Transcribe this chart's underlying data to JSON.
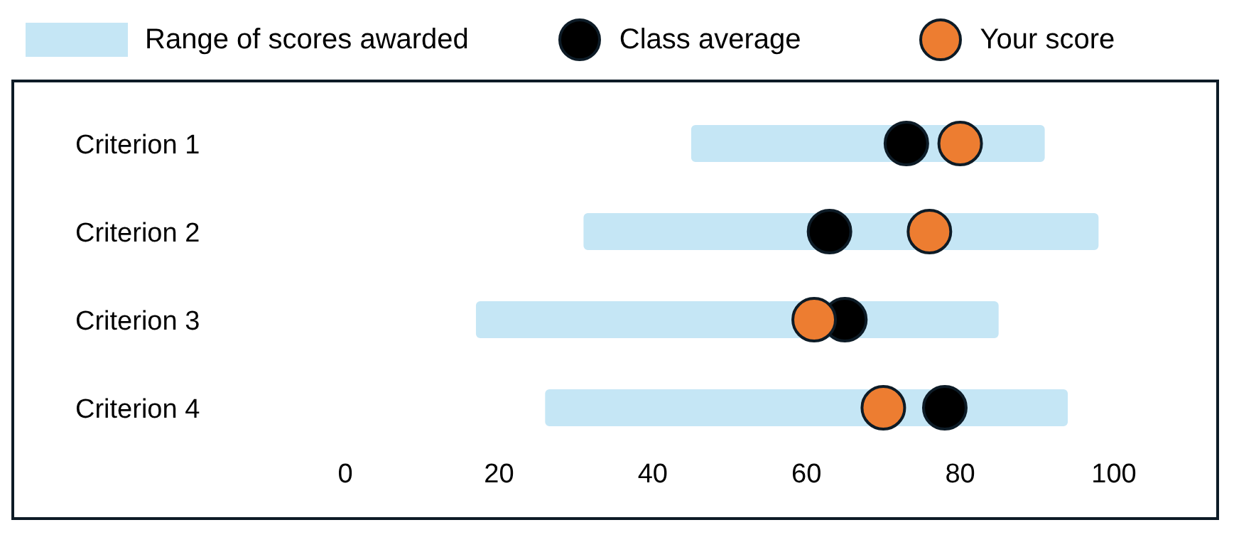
{
  "chart_data": {
    "type": "bar",
    "orientation": "horizontal",
    "categories": [
      "Criterion 1",
      "Criterion 2",
      "Criterion 3",
      "Criterion 4"
    ],
    "series": [
      {
        "name": "Range of scores awarded",
        "color": "#c5e6f5",
        "base": [
          45,
          31,
          17,
          26
        ],
        "values": [
          46,
          67,
          68,
          68
        ]
      },
      {
        "name": "Class average",
        "type": "scatter",
        "color": "#000000",
        "values": [
          73,
          63,
          65,
          78
        ]
      },
      {
        "name": "Your score",
        "type": "scatter",
        "color": "#ed7d31",
        "values": [
          80,
          76,
          61,
          70
        ]
      }
    ],
    "xlim": [
      0,
      100
    ],
    "xticks": [
      0,
      20,
      40,
      60,
      80,
      100
    ],
    "grid": false,
    "legend": "top",
    "marker": "circle"
  }
}
